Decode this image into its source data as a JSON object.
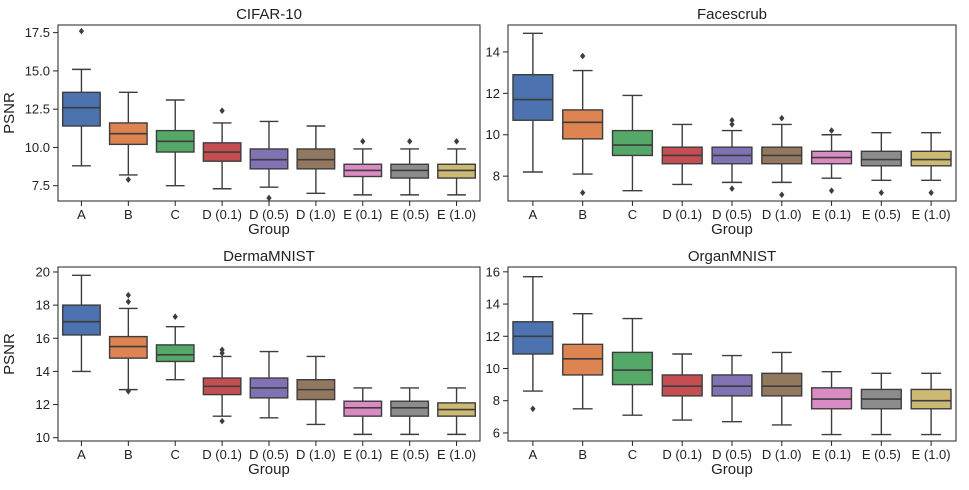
{
  "chart_data": [
    {
      "type": "box",
      "title": "CIFAR-10",
      "xlabel": "Group",
      "ylabel": "PSNR",
      "ylim": [
        6.5,
        18.0
      ],
      "yticks": [
        7.5,
        10.0,
        12.5,
        15.0,
        17.5
      ],
      "ytick_labels": [
        "7.5",
        "10.0",
        "12.5",
        "15.0",
        "17.5"
      ],
      "categories": [
        "A",
        "B",
        "C",
        "D (0.1)",
        "D (0.5)",
        "D (1.0)",
        "E (0.1)",
        "E (0.5)",
        "E (1.0)"
      ],
      "boxes": [
        {
          "whislo": 8.8,
          "q1": 11.4,
          "med": 12.6,
          "q3": 13.6,
          "whishi": 15.1,
          "fliers": [
            17.6
          ]
        },
        {
          "whislo": 8.2,
          "q1": 10.2,
          "med": 10.9,
          "q3": 11.6,
          "whishi": 13.6,
          "fliers": [
            7.9
          ]
        },
        {
          "whislo": 7.5,
          "q1": 9.7,
          "med": 10.4,
          "q3": 11.1,
          "whishi": 13.1,
          "fliers": []
        },
        {
          "whislo": 7.3,
          "q1": 9.1,
          "med": 9.7,
          "q3": 10.3,
          "whishi": 11.6,
          "fliers": [
            12.4
          ]
        },
        {
          "whislo": 7.4,
          "q1": 8.6,
          "med": 9.2,
          "q3": 9.9,
          "whishi": 11.7,
          "fliers": [
            6.7
          ]
        },
        {
          "whislo": 7.0,
          "q1": 8.6,
          "med": 9.2,
          "q3": 9.9,
          "whishi": 11.4,
          "fliers": []
        },
        {
          "whislo": 6.9,
          "q1": 8.1,
          "med": 8.5,
          "q3": 8.9,
          "whishi": 9.9,
          "fliers": [
            10.4
          ]
        },
        {
          "whislo": 6.9,
          "q1": 8.0,
          "med": 8.5,
          "q3": 8.9,
          "whishi": 9.9,
          "fliers": [
            10.4
          ]
        },
        {
          "whislo": 6.9,
          "q1": 8.0,
          "med": 8.5,
          "q3": 8.9,
          "whishi": 9.9,
          "fliers": [
            10.4
          ]
        }
      ]
    },
    {
      "type": "box",
      "title": "Facescrub",
      "xlabel": "Group",
      "ylabel": "",
      "ylim": [
        6.8,
        15.3
      ],
      "yticks": [
        8,
        10,
        12,
        14
      ],
      "ytick_labels": [
        "8",
        "10",
        "12",
        "14"
      ],
      "categories": [
        "A",
        "B",
        "C",
        "D (0.1)",
        "D (0.5)",
        "D (1.0)",
        "E (0.1)",
        "E (0.5)",
        "E (1.0)"
      ],
      "boxes": [
        {
          "whislo": 8.2,
          "q1": 10.7,
          "med": 11.7,
          "q3": 12.9,
          "whishi": 14.9,
          "fliers": []
        },
        {
          "whislo": 8.1,
          "q1": 9.8,
          "med": 10.6,
          "q3": 11.2,
          "whishi": 13.1,
          "fliers": [
            13.8,
            7.2
          ]
        },
        {
          "whislo": 7.3,
          "q1": 9.0,
          "med": 9.5,
          "q3": 10.2,
          "whishi": 11.9,
          "fliers": []
        },
        {
          "whislo": 7.6,
          "q1": 8.6,
          "med": 9.0,
          "q3": 9.4,
          "whishi": 10.5,
          "fliers": []
        },
        {
          "whislo": 7.7,
          "q1": 8.6,
          "med": 9.0,
          "q3": 9.4,
          "whishi": 10.2,
          "fliers": [
            10.7,
            10.5,
            7.4
          ]
        },
        {
          "whislo": 7.7,
          "q1": 8.6,
          "med": 9.0,
          "q3": 9.4,
          "whishi": 10.5,
          "fliers": [
            10.8,
            7.1
          ]
        },
        {
          "whislo": 7.9,
          "q1": 8.6,
          "med": 8.9,
          "q3": 9.2,
          "whishi": 10.0,
          "fliers": [
            10.2,
            7.3
          ]
        },
        {
          "whislo": 7.8,
          "q1": 8.5,
          "med": 8.8,
          "q3": 9.2,
          "whishi": 10.1,
          "fliers": [
            7.2
          ]
        },
        {
          "whislo": 7.8,
          "q1": 8.5,
          "med": 8.8,
          "q3": 9.2,
          "whishi": 10.1,
          "fliers": [
            7.2
          ]
        }
      ]
    },
    {
      "type": "box",
      "title": "DermaMNIST",
      "xlabel": "Group",
      "ylabel": "PSNR",
      "ylim": [
        9.8,
        20.3
      ],
      "yticks": [
        10,
        12,
        14,
        16,
        18,
        20
      ],
      "ytick_labels": [
        "10",
        "12",
        "14",
        "16",
        "18",
        "20"
      ],
      "categories": [
        "A",
        "B",
        "C",
        "D (0.1)",
        "D (0.5)",
        "D (1.0)",
        "E (0.1)",
        "E (0.5)",
        "E (1.0)"
      ],
      "boxes": [
        {
          "whislo": 14.0,
          "q1": 16.2,
          "med": 17.0,
          "q3": 18.0,
          "whishi": 19.8,
          "fliers": []
        },
        {
          "whislo": 12.9,
          "q1": 14.8,
          "med": 15.5,
          "q3": 16.1,
          "whishi": 17.8,
          "fliers": [
            18.6,
            18.2,
            12.8
          ]
        },
        {
          "whislo": 13.5,
          "q1": 14.6,
          "med": 15.0,
          "q3": 15.6,
          "whishi": 16.7,
          "fliers": [
            17.3
          ]
        },
        {
          "whislo": 11.3,
          "q1": 12.6,
          "med": 13.1,
          "q3": 13.6,
          "whishi": 14.9,
          "fliers": [
            15.3,
            15.1,
            11.0
          ]
        },
        {
          "whislo": 11.2,
          "q1": 12.4,
          "med": 13.0,
          "q3": 13.6,
          "whishi": 15.2,
          "fliers": []
        },
        {
          "whislo": 10.8,
          "q1": 12.3,
          "med": 12.9,
          "q3": 13.5,
          "whishi": 14.9,
          "fliers": []
        },
        {
          "whislo": 10.2,
          "q1": 11.3,
          "med": 11.8,
          "q3": 12.2,
          "whishi": 13.0,
          "fliers": []
        },
        {
          "whislo": 10.2,
          "q1": 11.3,
          "med": 11.8,
          "q3": 12.2,
          "whishi": 13.0,
          "fliers": []
        },
        {
          "whislo": 10.2,
          "q1": 11.3,
          "med": 11.7,
          "q3": 12.1,
          "whishi": 13.0,
          "fliers": []
        }
      ]
    },
    {
      "type": "box",
      "title": "OrganMNIST",
      "xlabel": "Group",
      "ylabel": "",
      "ylim": [
        5.5,
        16.3
      ],
      "yticks": [
        6,
        8,
        10,
        12,
        14,
        16
      ],
      "ytick_labels": [
        "6",
        "8",
        "10",
        "12",
        "14",
        "16"
      ],
      "categories": [
        "A",
        "B",
        "C",
        "D (0.1)",
        "D (0.5)",
        "D (1.0)",
        "E (0.1)",
        "E (0.5)",
        "E (1.0)"
      ],
      "boxes": [
        {
          "whislo": 8.6,
          "q1": 10.9,
          "med": 12.0,
          "q3": 12.9,
          "whishi": 15.7,
          "fliers": [
            7.5
          ]
        },
        {
          "whislo": 7.5,
          "q1": 9.6,
          "med": 10.6,
          "q3": 11.5,
          "whishi": 13.4,
          "fliers": []
        },
        {
          "whislo": 7.1,
          "q1": 9.0,
          "med": 9.9,
          "q3": 11.0,
          "whishi": 13.1,
          "fliers": []
        },
        {
          "whislo": 6.8,
          "q1": 8.3,
          "med": 8.9,
          "q3": 9.6,
          "whishi": 10.9,
          "fliers": []
        },
        {
          "whislo": 6.7,
          "q1": 8.3,
          "med": 8.9,
          "q3": 9.6,
          "whishi": 10.8,
          "fliers": []
        },
        {
          "whislo": 6.5,
          "q1": 8.3,
          "med": 8.9,
          "q3": 9.7,
          "whishi": 11.0,
          "fliers": []
        },
        {
          "whislo": 5.9,
          "q1": 7.5,
          "med": 8.1,
          "q3": 8.8,
          "whishi": 9.8,
          "fliers": []
        },
        {
          "whislo": 5.9,
          "q1": 7.5,
          "med": 8.1,
          "q3": 8.7,
          "whishi": 9.7,
          "fliers": []
        },
        {
          "whislo": 5.9,
          "q1": 7.5,
          "med": 8.0,
          "q3": 8.7,
          "whishi": 9.7,
          "fliers": []
        }
      ]
    }
  ],
  "colors": [
    "#4c72b0",
    "#dd8452",
    "#55a868",
    "#c44e52",
    "#8172b3",
    "#937860",
    "#da8bc3",
    "#8c8c8c",
    "#ccb974"
  ],
  "line_color": "#3d3d3d"
}
